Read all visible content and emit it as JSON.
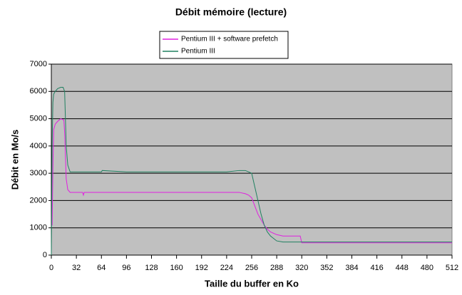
{
  "chart_data": {
    "type": "line",
    "title": "Débit mémoire (lecture)",
    "x_label": "Taille du buffer en Ko",
    "y_label": "Débit en Mo/s",
    "xlim": [
      0,
      512
    ],
    "xticks": [
      0,
      32,
      64,
      96,
      128,
      160,
      192,
      224,
      256,
      288,
      320,
      352,
      384,
      416,
      448,
      480,
      512
    ],
    "ylim": [
      0,
      7000
    ],
    "yticks": [
      0,
      1000,
      2000,
      3000,
      4000,
      5000,
      6000,
      7000
    ],
    "grid": true,
    "legend": "top",
    "series": [
      {
        "name": "Pentium III + software prefetch",
        "color": "#e020e0",
        "x": [
          0,
          1,
          2,
          3,
          5,
          8,
          12,
          16,
          17,
          19,
          21,
          24,
          32,
          40,
          41,
          42,
          64,
          128,
          192,
          224,
          240,
          248,
          252,
          256,
          260,
          264,
          268,
          272,
          276,
          280,
          288,
          296,
          304,
          318,
          320,
          352,
          512
        ],
        "values": [
          1100,
          1100,
          3200,
          4600,
          4800,
          4900,
          5000,
          4950,
          4500,
          2800,
          2400,
          2300,
          2300,
          2300,
          2200,
          2300,
          2300,
          2300,
          2300,
          2300,
          2300,
          2250,
          2200,
          2100,
          1800,
          1500,
          1300,
          1100,
          950,
          850,
          750,
          700,
          700,
          700,
          450,
          450,
          450
        ]
      },
      {
        "name": "Pentium III",
        "color": "#208060",
        "x": [
          0,
          1,
          2,
          3,
          5,
          8,
          12,
          15,
          17,
          19,
          21,
          24,
          32,
          64,
          65,
          96,
          128,
          160,
          192,
          224,
          240,
          248,
          252,
          256,
          260,
          264,
          268,
          272,
          276,
          280,
          288,
          296,
          320,
          352,
          512
        ],
        "values": [
          0,
          4000,
          5600,
          5900,
          6000,
          6100,
          6150,
          6150,
          6000,
          4000,
          3300,
          3050,
          3050,
          3050,
          3100,
          3050,
          3050,
          3050,
          3050,
          3050,
          3100,
          3100,
          3050,
          3000,
          2500,
          2000,
          1500,
          1100,
          850,
          700,
          520,
          480,
          480,
          480,
          480
        ]
      }
    ]
  }
}
